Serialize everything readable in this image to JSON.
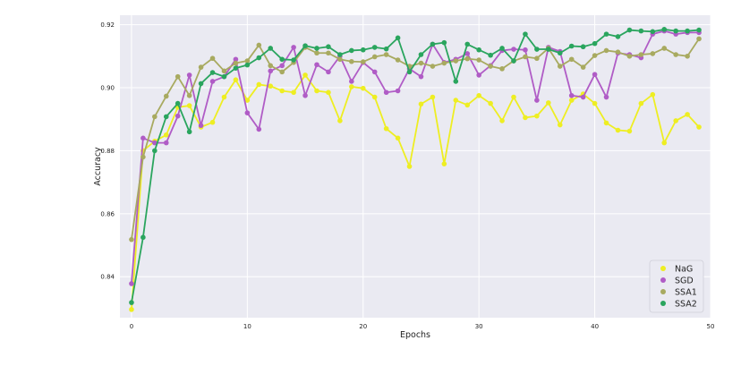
{
  "chart_data": {
    "type": "line",
    "xlabel": "Epochs",
    "ylabel": "Accuracy",
    "xlim": [
      -1,
      50
    ],
    "ylim": [
      0.827,
      0.923
    ],
    "xticks": [
      0,
      10,
      20,
      30,
      40,
      50
    ],
    "yticks": [
      0.84,
      0.86,
      0.88,
      0.9,
      0.92
    ],
    "ytick_labels": [
      "0.84",
      "0.86",
      "0.88",
      "0.90",
      "0.92"
    ],
    "grid": true,
    "legend_position": "bottom-right",
    "series": [
      {
        "name": "NaG",
        "color": "#eeee22",
        "values": [
          0.8296,
          0.88,
          0.883,
          0.885,
          0.8938,
          0.8943,
          0.8875,
          0.889,
          0.897,
          0.9025,
          0.896,
          0.901,
          0.9005,
          0.899,
          0.8985,
          0.904,
          0.899,
          0.8985,
          0.8895,
          0.9003,
          0.8998,
          0.897,
          0.887,
          0.884,
          0.875,
          0.8948,
          0.897,
          0.8758,
          0.896,
          0.8945,
          0.8975,
          0.895,
          0.8895,
          0.897,
          0.8905,
          0.891,
          0.8952,
          0.8882,
          0.896,
          0.898,
          0.895,
          0.8888,
          0.8865,
          0.8862,
          0.895,
          0.8978,
          0.8825,
          0.8895,
          0.8915,
          0.8875
        ]
      },
      {
        "name": "SGD",
        "color": "#b05cc6",
        "values": [
          0.8378,
          0.884,
          0.8825,
          0.8825,
          0.891,
          0.904,
          0.888,
          0.902,
          0.9035,
          0.909,
          0.892,
          0.8868,
          0.9053,
          0.907,
          0.9128,
          0.8975,
          0.9073,
          0.905,
          0.91,
          0.902,
          0.908,
          0.905,
          0.8985,
          0.899,
          0.906,
          0.9035,
          0.9138,
          0.908,
          0.909,
          0.9108,
          0.904,
          0.907,
          0.9118,
          0.9122,
          0.912,
          0.896,
          0.9128,
          0.9115,
          0.8975,
          0.897,
          0.9042,
          0.897,
          0.911,
          0.9105,
          0.9095,
          0.917,
          0.918,
          0.917,
          0.9175,
          0.9175
        ]
      },
      {
        "name": "SSA1",
        "color": "#a8aa60",
        "values": [
          0.8518,
          0.878,
          0.8908,
          0.8973,
          0.9035,
          0.8975,
          0.9065,
          0.9093,
          0.9053,
          0.9078,
          0.9085,
          0.9135,
          0.907,
          0.905,
          0.908,
          0.9128,
          0.911,
          0.911,
          0.909,
          0.9083,
          0.9082,
          0.9098,
          0.9105,
          0.9088,
          0.9068,
          0.9078,
          0.9068,
          0.9078,
          0.9085,
          0.9092,
          0.9088,
          0.9068,
          0.906,
          0.9085,
          0.9098,
          0.9093,
          0.9125,
          0.9068,
          0.909,
          0.9065,
          0.9102,
          0.9118,
          0.9113,
          0.91,
          0.9105,
          0.9108,
          0.9125,
          0.9105,
          0.91,
          0.9155
        ]
      },
      {
        "name": "SSA2",
        "color": "#2aa55e",
        "values": [
          0.8318,
          0.8525,
          0.88,
          0.8908,
          0.895,
          0.886,
          0.9013,
          0.9048,
          0.9035,
          0.9062,
          0.9072,
          0.9095,
          0.9125,
          0.909,
          0.9088,
          0.9133,
          0.9125,
          0.913,
          0.9105,
          0.9118,
          0.912,
          0.9128,
          0.9123,
          0.9158,
          0.905,
          0.9105,
          0.9138,
          0.9143,
          0.902,
          0.9138,
          0.912,
          0.9103,
          0.9125,
          0.9085,
          0.917,
          0.9122,
          0.9122,
          0.911,
          0.9132,
          0.913,
          0.914,
          0.917,
          0.9162,
          0.9183,
          0.918,
          0.9178,
          0.9185,
          0.918,
          0.918,
          0.9183
        ]
      }
    ]
  }
}
